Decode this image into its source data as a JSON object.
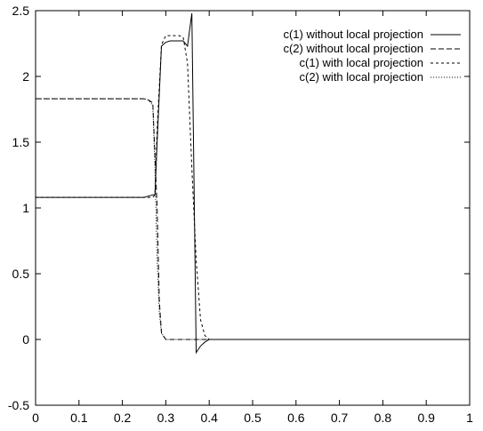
{
  "chart_data": {
    "type": "line",
    "title": "",
    "xlabel": "",
    "ylabel": "",
    "xlim": [
      0,
      1
    ],
    "ylim": [
      -0.5,
      2.5
    ],
    "xticks": [
      "0",
      "0.1",
      "0.2",
      "0.3",
      "0.4",
      "0.5",
      "0.6",
      "0.7",
      "0.8",
      "0.9",
      "1"
    ],
    "yticks": [
      "-0.5",
      "0",
      "0.5",
      "1",
      "1.5",
      "2",
      "2.5"
    ],
    "grid": false,
    "legend_position": "top-right",
    "series": [
      {
        "name": "c(1) without local projection",
        "style": "solid",
        "x": [
          0,
          0.25,
          0.26,
          0.27,
          0.275,
          0.28,
          0.29,
          0.3,
          0.31,
          0.32,
          0.33,
          0.34,
          0.35,
          0.36,
          0.37,
          0.38,
          0.39,
          0.4,
          0.5,
          1.0
        ],
        "y": [
          1.08,
          1.08,
          1.09,
          1.1,
          1.1,
          1.5,
          2.23,
          2.26,
          2.27,
          2.27,
          2.27,
          2.27,
          2.23,
          2.48,
          -0.1,
          -0.05,
          -0.02,
          0,
          0,
          0
        ]
      },
      {
        "name": "c(2) without local projection",
        "style": "dashed",
        "x": [
          0,
          0.25,
          0.26,
          0.27,
          0.28,
          0.285,
          0.29,
          0.3,
          0.31,
          0.4,
          0.5,
          1.0
        ],
        "y": [
          1.83,
          1.83,
          1.82,
          1.8,
          1.0,
          0.3,
          0.05,
          0,
          0,
          0,
          0,
          0
        ]
      },
      {
        "name": "c(1) with local projection",
        "style": "dotted",
        "x": [
          0,
          0.26,
          0.27,
          0.275,
          0.28,
          0.29,
          0.3,
          0.31,
          0.32,
          0.33,
          0.34,
          0.35,
          0.36,
          0.37,
          0.38,
          0.39,
          0.4,
          0.5,
          1.0
        ],
        "y": [
          1.08,
          1.08,
          1.08,
          1.1,
          1.6,
          2.24,
          2.31,
          2.31,
          2.31,
          2.31,
          2.3,
          2.1,
          1.3,
          0.6,
          0.15,
          0.03,
          0,
          0,
          0
        ]
      },
      {
        "name": "c(2) with local projection",
        "style": "fine-dotted",
        "x": [
          0,
          0.25,
          0.26,
          0.265,
          0.27,
          0.275,
          0.28,
          0.285,
          0.29,
          0.3,
          0.31,
          0.4,
          0.5,
          1.0
        ],
        "y": [
          1.83,
          1.83,
          1.82,
          1.8,
          1.78,
          1.3,
          0.6,
          0.2,
          0.05,
          0,
          0,
          0,
          0,
          0
        ]
      }
    ]
  }
}
